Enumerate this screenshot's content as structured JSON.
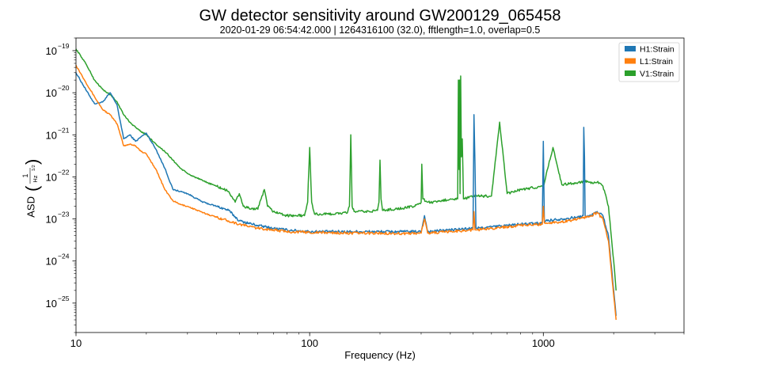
{
  "chart_data": {
    "type": "line",
    "title": "GW detector sensitivity around GW200129_065458",
    "subtitle": "2020-01-29 06:54:42.000 | 1264316100 (32.0), fftlength=1.0, overlap=0.5",
    "xlabel": "Frequency (Hz)",
    "ylabel": "ASD",
    "ylabel_unit_numerator": "1",
    "ylabel_unit_denominator": "Hz",
    "ylabel_unit_exponent": "1/2",
    "xscale": "log",
    "yscale": "log",
    "xlim": [
      10,
      4000
    ],
    "ylim": [
      2e-26,
      2e-19
    ],
    "x_ticks": [
      {
        "value": 10,
        "label": "10"
      },
      {
        "value": 100,
        "label": "100"
      },
      {
        "value": 1000,
        "label": "1000"
      }
    ],
    "y_ticks": [
      {
        "value": 1e-25,
        "base": "10",
        "exponent": "−25"
      },
      {
        "value": 1e-24,
        "base": "10",
        "exponent": "−24"
      },
      {
        "value": 1e-23,
        "base": "10",
        "exponent": "−23"
      },
      {
        "value": 1e-22,
        "base": "10",
        "exponent": "−22"
      },
      {
        "value": 1e-21,
        "base": "10",
        "exponent": "−21"
      },
      {
        "value": 1e-20,
        "base": "10",
        "exponent": "−20"
      },
      {
        "value": 1e-19,
        "base": "10",
        "exponent": "−19"
      }
    ],
    "legend_position": "top-right",
    "series": [
      {
        "name": "H1:Strain",
        "color": "#1f77b4",
        "x": [
          10,
          11,
          12,
          13,
          14,
          15,
          16,
          17,
          18,
          19,
          20,
          22,
          24,
          26,
          28,
          30,
          35,
          40,
          45,
          50,
          60,
          70,
          80,
          100,
          150,
          200,
          250,
          300,
          310,
          320,
          400,
          500,
          505,
          510,
          515,
          520,
          600,
          800,
          990,
          1000,
          1010,
          1200,
          1400,
          1480,
          1490,
          1500,
          1510,
          1520,
          1600,
          1700,
          1800,
          1900,
          2000,
          2048
        ],
        "values": [
          3e-20,
          1.2e-20,
          5.5e-21,
          6e-21,
          1e-20,
          5e-21,
          8e-22,
          1e-21,
          7e-22,
          9e-22,
          1.1e-21,
          4.5e-22,
          1.6e-22,
          5e-23,
          4.5e-23,
          4e-23,
          2.5e-23,
          2e-23,
          1.6e-23,
          9e-24,
          7e-24,
          6e-24,
          5.5e-24,
          5e-24,
          5e-24,
          5e-24,
          5e-24,
          5e-24,
          1.2e-23,
          5e-24,
          5.5e-24,
          6e-24,
          3e-21,
          2e-22,
          6e-24,
          6e-24,
          6.5e-24,
          7.5e-24,
          8e-24,
          7e-22,
          9e-24,
          1e-23,
          1.1e-23,
          1.2e-23,
          1.5e-21,
          3e-22,
          1.2e-23,
          1.1e-23,
          1.2e-23,
          1.5e-23,
          1.2e-23,
          4e-24,
          2e-25,
          5e-26
        ]
      },
      {
        "name": "L1:Strain",
        "color": "#ff7f0e",
        "x": [
          10,
          11,
          12,
          13,
          14,
          15,
          16,
          17,
          18,
          19,
          20,
          22,
          24,
          26,
          28,
          30,
          35,
          40,
          45,
          50,
          60,
          70,
          80,
          100,
          150,
          200,
          250,
          300,
          310,
          320,
          400,
          500,
          505,
          510,
          515,
          520,
          600,
          800,
          990,
          1000,
          1010,
          1200,
          1400,
          1600,
          1700,
          1800,
          1900,
          2000,
          2048
        ],
        "values": [
          4.5e-20,
          1.8e-20,
          8e-21,
          4e-21,
          3e-21,
          1.8e-21,
          5.5e-22,
          6e-22,
          5.5e-22,
          4e-22,
          3.5e-22,
          1.5e-22,
          5e-23,
          2.7e-23,
          2.2e-23,
          2e-23,
          1.4e-23,
          1.1e-23,
          9e-24,
          7.5e-24,
          6e-24,
          5.5e-24,
          5e-24,
          4.8e-24,
          4.6e-24,
          4.6e-24,
          4.5e-24,
          4.6e-24,
          1e-23,
          4.6e-24,
          5e-24,
          5.5e-24,
          1.5e-23,
          5.5e-24,
          5.5e-24,
          5.5e-24,
          6e-24,
          7e-24,
          7.5e-24,
          2e-23,
          8e-24,
          8.5e-24,
          1e-23,
          1.2e-23,
          1.4e-23,
          1e-23,
          3e-24,
          1.5e-25,
          4e-26
        ]
      },
      {
        "name": "V1:Strain",
        "color": "#2ca02c",
        "x": [
          10,
          11,
          12,
          13,
          14,
          15,
          16,
          17,
          18,
          19,
          20,
          22,
          24,
          26,
          28,
          30,
          35,
          40,
          45,
          48,
          50,
          52,
          55,
          60,
          62,
          64,
          66,
          70,
          80,
          95,
          98,
          100,
          102,
          105,
          120,
          145,
          148,
          150,
          152,
          155,
          180,
          195,
          198,
          200,
          202,
          205,
          250,
          280,
          300,
          302,
          305,
          320,
          350,
          400,
          430,
          433,
          436,
          438,
          440,
          443,
          446,
          450,
          455,
          460,
          500,
          600,
          650,
          700,
          800,
          900,
          1000,
          1100,
          1200,
          1300,
          1400,
          1500,
          1600,
          1700,
          1800,
          1900,
          2000,
          2048
        ],
        "values": [
          1.1e-19,
          5e-20,
          2e-20,
          1.2e-20,
          9e-21,
          6e-21,
          3e-21,
          2e-21,
          1.5e-21,
          1.2e-21,
          1e-21,
          6e-22,
          4e-22,
          2.5e-22,
          1.6e-22,
          1.2e-22,
          8e-23,
          6e-23,
          4.5e-23,
          2.5e-23,
          4e-23,
          2e-23,
          1.8e-23,
          1.7e-23,
          3e-23,
          5e-23,
          2e-23,
          1.5e-23,
          1.2e-23,
          1.2e-23,
          2.5e-23,
          5e-22,
          2.5e-23,
          1.3e-23,
          1.3e-23,
          1.4e-23,
          2e-23,
          1e-21,
          2e-23,
          1.5e-23,
          1.5e-23,
          1.6e-23,
          2.5e-23,
          2.5e-22,
          3e-23,
          1.6e-23,
          1.8e-23,
          2e-23,
          2.5e-23,
          2e-22,
          3e-23,
          2.5e-23,
          2.5e-23,
          3e-23,
          3e-23,
          2e-20,
          1.5e-22,
          2e-20,
          4e-23,
          2.5e-20,
          3e-22,
          8e-22,
          3e-23,
          3e-23,
          3.5e-23,
          3.5e-23,
          2e-21,
          4e-23,
          5e-23,
          5.5e-23,
          6e-23,
          5e-22,
          6.5e-23,
          7e-23,
          7e-23,
          8e-23,
          7e-23,
          7.5e-23,
          6e-23,
          2e-23,
          1e-24,
          2e-25
        ]
      }
    ]
  }
}
